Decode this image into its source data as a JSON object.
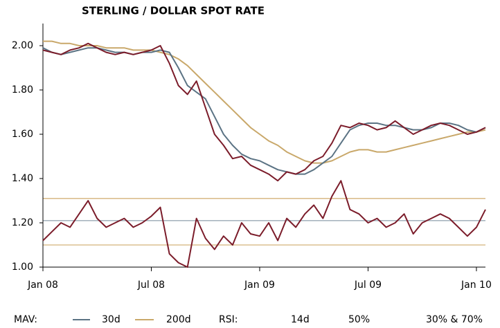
{
  "chart_data": {
    "type": "line",
    "title": "STERLING / DOLLAR SPOT RATE",
    "x": [
      0,
      0.5,
      1,
      1.5,
      2,
      2.5,
      3,
      3.5,
      4,
      4.5,
      5,
      5.5,
      6,
      6.5,
      7,
      7.5,
      8,
      8.5,
      9,
      9.5,
      10,
      10.5,
      11,
      11.5,
      12,
      12.5,
      13,
      13.5,
      14,
      14.5,
      15,
      15.5,
      16,
      16.5,
      17,
      17.5,
      18,
      18.5,
      19,
      19.5,
      20,
      20.5,
      21,
      21.5,
      22,
      22.5,
      23,
      23.5,
      24,
      24.5
    ],
    "xlim": [
      0,
      24.5
    ],
    "xticks": [
      {
        "value": 0,
        "label": "Jan 08"
      },
      {
        "value": 6,
        "label": "Jul 08"
      },
      {
        "value": 12,
        "label": "Jan 09"
      },
      {
        "value": 18,
        "label": "Jul 09"
      },
      {
        "value": 24,
        "label": "Jan 10"
      }
    ],
    "ylim": [
      1.0,
      2.1
    ],
    "yticks": [
      {
        "value": 1.0,
        "label": "1.00"
      },
      {
        "value": 1.2,
        "label": "1.20"
      },
      {
        "value": 1.4,
        "label": "1.40"
      },
      {
        "value": 1.6,
        "label": "1.60"
      },
      {
        "value": 1.8,
        "label": "1.80"
      },
      {
        "value": 2.0,
        "label": "2.00"
      }
    ],
    "series": [
      {
        "color": "#7b1c2a",
        "values": [
          1.98,
          1.97,
          1.96,
          1.98,
          1.99,
          2.01,
          1.99,
          1.97,
          1.96,
          1.97,
          1.96,
          1.97,
          1.98,
          2.0,
          1.92,
          1.82,
          1.78,
          1.84,
          1.72,
          1.6,
          1.55,
          1.49,
          1.5,
          1.46,
          1.44,
          1.42,
          1.39,
          1.43,
          1.42,
          1.44,
          1.48,
          1.5,
          1.56,
          1.64,
          1.63,
          1.65,
          1.64,
          1.62,
          1.63,
          1.66,
          1.63,
          1.6,
          1.62,
          1.64,
          1.65,
          1.64,
          1.62,
          1.6,
          1.61,
          1.63
        ]
      },
      {
        "name": "30d",
        "color": "#5b7384",
        "values": [
          1.99,
          1.97,
          1.96,
          1.97,
          1.98,
          1.99,
          1.99,
          1.98,
          1.97,
          1.97,
          1.96,
          1.97,
          1.97,
          1.98,
          1.97,
          1.9,
          1.82,
          1.79,
          1.76,
          1.68,
          1.6,
          1.55,
          1.51,
          1.49,
          1.48,
          1.46,
          1.44,
          1.43,
          1.42,
          1.42,
          1.44,
          1.47,
          1.5,
          1.56,
          1.62,
          1.64,
          1.65,
          1.65,
          1.64,
          1.64,
          1.63,
          1.62,
          1.62,
          1.63,
          1.65,
          1.65,
          1.64,
          1.62,
          1.61,
          1.63
        ]
      },
      {
        "name": "200d",
        "color": "#c9a86a",
        "values": [
          2.02,
          2.02,
          2.01,
          2.01,
          2.0,
          2.0,
          2.0,
          1.99,
          1.99,
          1.99,
          1.98,
          1.98,
          1.98,
          1.97,
          1.96,
          1.94,
          1.91,
          1.87,
          1.83,
          1.79,
          1.75,
          1.71,
          1.67,
          1.63,
          1.6,
          1.57,
          1.55,
          1.52,
          1.5,
          1.48,
          1.47,
          1.47,
          1.48,
          1.5,
          1.52,
          1.53,
          1.53,
          1.52,
          1.52,
          1.53,
          1.54,
          1.55,
          1.56,
          1.57,
          1.58,
          1.59,
          1.6,
          1.61,
          1.61,
          1.62
        ]
      },
      {
        "name": "14d",
        "color": "#7b1c2a",
        "values": [
          1.12,
          1.16,
          1.2,
          1.18,
          1.24,
          1.3,
          1.22,
          1.18,
          1.2,
          1.22,
          1.18,
          1.2,
          1.23,
          1.27,
          1.06,
          1.02,
          1.0,
          1.22,
          1.13,
          1.08,
          1.14,
          1.1,
          1.2,
          1.15,
          1.14,
          1.2,
          1.12,
          1.22,
          1.18,
          1.24,
          1.28,
          1.22,
          1.32,
          1.39,
          1.26,
          1.24,
          1.2,
          1.22,
          1.18,
          1.2,
          1.24,
          1.15,
          1.2,
          1.22,
          1.24,
          1.22,
          1.18,
          1.14,
          1.18,
          1.26
        ]
      }
    ],
    "reference_lines": [
      {
        "name": "50%",
        "color": "#9aa8b4",
        "values": [
          1.21
        ]
      },
      {
        "name": "30% & 70%",
        "color": "#d4b27a",
        "values": [
          1.1,
          1.31
        ]
      }
    ],
    "legend_labels": [
      "MAV:",
      "RSI:"
    ]
  }
}
